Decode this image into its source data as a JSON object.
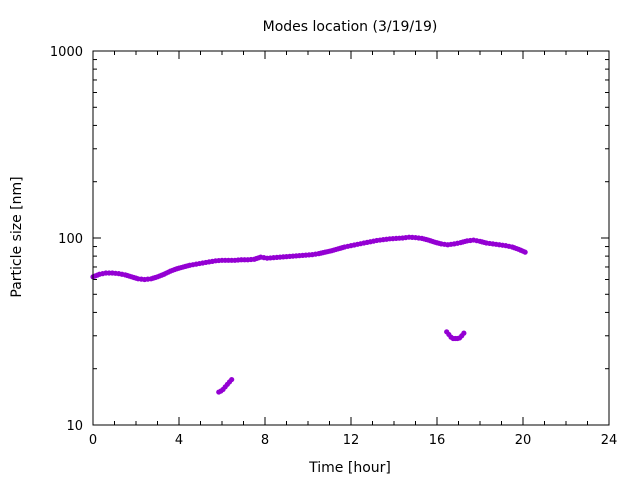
{
  "chart_data": {
    "type": "scatter",
    "title": "Modes location (3/19/19)",
    "xlabel": "Time [hour]",
    "ylabel": "Particle size [nm]",
    "xlim": [
      0,
      24
    ],
    "ylim": [
      10,
      1000
    ],
    "yscale": "log",
    "x_ticks": [
      0,
      4,
      8,
      12,
      16,
      20,
      24
    ],
    "y_ticks": [
      10,
      100,
      1000
    ],
    "grid": false,
    "marker_color": "#9400d3",
    "series": [
      {
        "points": [
          [
            0.0,
            62
          ],
          [
            0.3,
            64
          ],
          [
            0.6,
            65
          ],
          [
            0.9,
            65
          ],
          [
            1.2,
            64.5
          ],
          [
            1.5,
            63.5
          ],
          [
            1.8,
            62
          ],
          [
            2.1,
            60.5
          ],
          [
            2.4,
            60
          ],
          [
            2.7,
            60.5
          ],
          [
            3.0,
            62
          ],
          [
            3.3,
            64
          ],
          [
            3.6,
            66.5
          ],
          [
            3.9,
            68.5
          ],
          [
            4.2,
            70
          ],
          [
            4.5,
            71.5
          ],
          [
            4.8,
            72.5
          ],
          [
            5.1,
            73.5
          ],
          [
            5.4,
            74.5
          ],
          [
            5.7,
            75.5
          ],
          [
            6.0,
            76
          ],
          [
            6.3,
            76
          ],
          [
            6.6,
            76
          ],
          [
            6.9,
            76.5
          ],
          [
            7.2,
            76.5
          ],
          [
            7.5,
            77
          ],
          [
            7.8,
            79
          ],
          [
            8.1,
            78
          ],
          [
            8.4,
            78.5
          ],
          [
            8.7,
            79
          ],
          [
            9.0,
            79.5
          ],
          [
            9.3,
            80
          ],
          [
            9.6,
            80.5
          ],
          [
            9.9,
            81
          ],
          [
            10.2,
            81.5
          ],
          [
            10.5,
            82.5
          ],
          [
            10.8,
            84
          ],
          [
            11.1,
            85.5
          ],
          [
            11.4,
            87.5
          ],
          [
            11.7,
            89.5
          ],
          [
            12.0,
            91
          ],
          [
            12.3,
            92.5
          ],
          [
            12.6,
            94
          ],
          [
            12.9,
            95.5
          ],
          [
            13.2,
            97
          ],
          [
            13.5,
            98
          ],
          [
            13.8,
            99
          ],
          [
            14.1,
            99.5
          ],
          [
            14.4,
            100
          ],
          [
            14.7,
            101
          ],
          [
            15.0,
            100.5
          ],
          [
            15.3,
            99.5
          ],
          [
            15.6,
            97.5
          ],
          [
            15.9,
            95
          ],
          [
            16.2,
            93
          ],
          [
            16.5,
            92
          ],
          [
            16.8,
            93
          ],
          [
            17.1,
            94.5
          ],
          [
            17.4,
            96.5
          ],
          [
            17.7,
            97.5
          ],
          [
            18.0,
            96
          ],
          [
            18.3,
            94
          ],
          [
            18.6,
            93
          ],
          [
            18.9,
            92
          ],
          [
            19.2,
            91
          ],
          [
            19.5,
            89.5
          ],
          [
            19.8,
            87
          ],
          [
            20.1,
            84
          ]
        ]
      },
      {
        "points": [
          [
            5.85,
            15
          ],
          [
            5.95,
            15.2
          ],
          [
            6.05,
            15.5
          ],
          [
            6.15,
            16
          ],
          [
            6.25,
            16.5
          ],
          [
            6.35,
            17
          ],
          [
            6.45,
            17.5
          ]
        ]
      },
      {
        "points": [
          [
            16.45,
            31.5
          ],
          [
            16.55,
            30.5
          ],
          [
            16.65,
            29.5
          ],
          [
            16.75,
            29
          ],
          [
            16.85,
            29
          ],
          [
            16.95,
            29
          ],
          [
            17.05,
            29.2
          ],
          [
            17.15,
            30
          ],
          [
            17.25,
            31
          ]
        ]
      }
    ]
  }
}
